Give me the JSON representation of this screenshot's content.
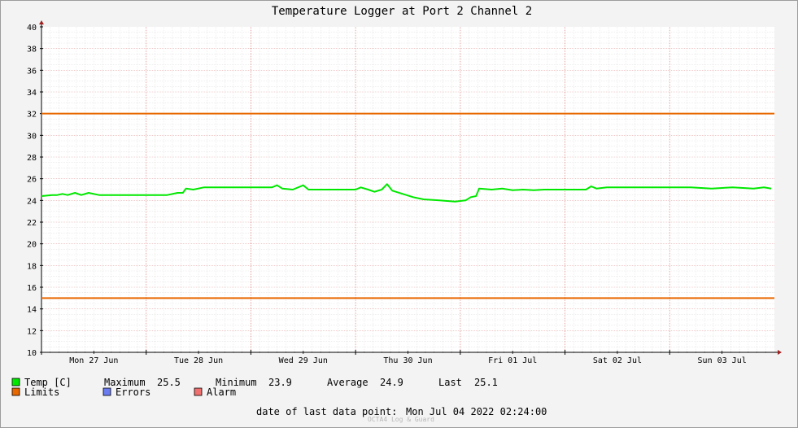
{
  "chart_data": {
    "type": "line",
    "title": "Temperature Logger at Port 2 Channel 2",
    "ylim": [
      10,
      40
    ],
    "yticks": [
      10,
      12,
      14,
      16,
      18,
      20,
      22,
      24,
      26,
      28,
      30,
      32,
      34,
      36,
      38,
      40
    ],
    "xlim_days": [
      0,
      7
    ],
    "day_labels": [
      "Mon 27 Jun",
      "Tue 28 Jun",
      "Wed 29 Jun",
      "Thu 30 Jun",
      "Fri 01 Jul",
      "Sat 02 Jul",
      "Sun 03 Jul"
    ],
    "grid": true,
    "colors": {
      "temp": "#00e800",
      "limits": "#e86800",
      "errors": "#6b7cf0",
      "alarm": "#f07070"
    },
    "series": [
      {
        "name": "Temp [C]",
        "points": [
          [
            0.0,
            24.4
          ],
          [
            0.1,
            24.5
          ],
          [
            0.15,
            24.5
          ],
          [
            0.2,
            24.6
          ],
          [
            0.25,
            24.5
          ],
          [
            0.32,
            24.7
          ],
          [
            0.38,
            24.5
          ],
          [
            0.45,
            24.7
          ],
          [
            0.55,
            24.5
          ],
          [
            0.8,
            24.5
          ],
          [
            1.0,
            24.5
          ],
          [
            1.2,
            24.5
          ],
          [
            1.3,
            24.7
          ],
          [
            1.35,
            24.7
          ],
          [
            1.38,
            25.1
          ],
          [
            1.45,
            25.0
          ],
          [
            1.55,
            25.2
          ],
          [
            1.7,
            25.2
          ],
          [
            2.0,
            25.2
          ],
          [
            2.2,
            25.2
          ],
          [
            2.25,
            25.4
          ],
          [
            2.3,
            25.1
          ],
          [
            2.4,
            25.0
          ],
          [
            2.5,
            25.4
          ],
          [
            2.55,
            25.0
          ],
          [
            3.0,
            25.0
          ],
          [
            3.05,
            25.2
          ],
          [
            3.12,
            25.0
          ],
          [
            3.18,
            24.8
          ],
          [
            3.25,
            25.0
          ],
          [
            3.3,
            25.5
          ],
          [
            3.35,
            24.9
          ],
          [
            3.45,
            24.6
          ],
          [
            3.55,
            24.3
          ],
          [
            3.65,
            24.1
          ],
          [
            3.8,
            24.0
          ],
          [
            3.95,
            23.9
          ],
          [
            4.05,
            24.0
          ],
          [
            4.1,
            24.3
          ],
          [
            4.15,
            24.4
          ],
          [
            4.18,
            25.1
          ],
          [
            4.3,
            25.0
          ],
          [
            4.4,
            25.1
          ],
          [
            4.5,
            24.95
          ],
          [
            4.6,
            25.0
          ],
          [
            4.7,
            24.95
          ],
          [
            4.8,
            25.0
          ],
          [
            5.0,
            25.0
          ],
          [
            5.2,
            25.0
          ],
          [
            5.25,
            25.3
          ],
          [
            5.3,
            25.1
          ],
          [
            5.4,
            25.2
          ],
          [
            5.6,
            25.2
          ],
          [
            5.8,
            25.2
          ],
          [
            6.0,
            25.2
          ],
          [
            6.2,
            25.2
          ],
          [
            6.4,
            25.1
          ],
          [
            6.6,
            25.2
          ],
          [
            6.8,
            25.1
          ],
          [
            6.9,
            25.2
          ],
          [
            6.97,
            25.1
          ]
        ]
      }
    ],
    "limits": [
      {
        "name": "Limits",
        "value": 32
      },
      {
        "name": "Limits",
        "value": 15
      }
    ]
  },
  "legend": {
    "row1": [
      {
        "label": "Temp [C]",
        "swatch": "#00e800"
      },
      {
        "label": "Maximum",
        "value": "25.5"
      },
      {
        "label": "Minimum",
        "value": "23.9"
      },
      {
        "label": "Average",
        "value": "24.9"
      },
      {
        "label": "Last",
        "value": "25.1"
      }
    ],
    "row2": [
      {
        "label": "Limits",
        "swatch": "#e86800"
      },
      {
        "label": "Errors",
        "swatch": "#6b7cf0"
      },
      {
        "label": "Alarm",
        "swatch": "#f07070"
      }
    ]
  },
  "footer": {
    "last_point_label": "date of last data point:",
    "last_point_value": "Mon Jul 04 2022 02:24:00",
    "credit": "OCTA4 Log & Guard"
  }
}
